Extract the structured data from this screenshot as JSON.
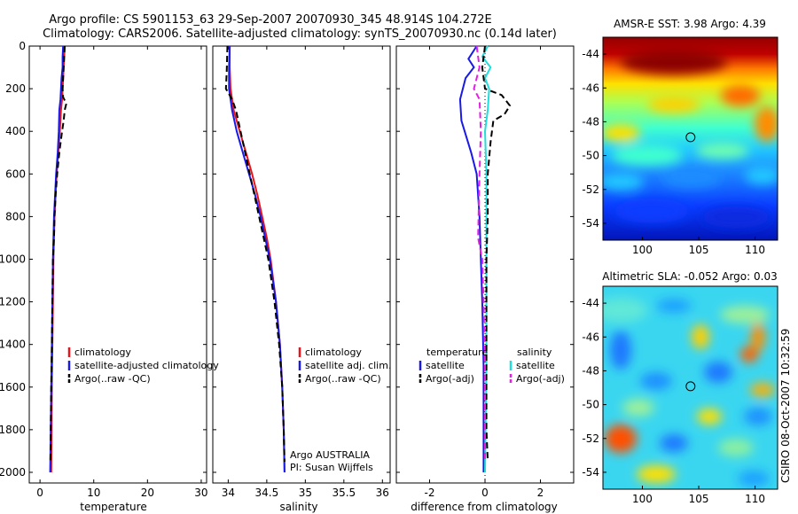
{
  "title_line1": "Argo profile: CS 5901153_63 29-Sep-2007 20070930_345 48.914S 104.272E",
  "title_line2": "Climatology: CARS2006. Satellite-adjusted climatology: synTS_20070930.nc (0.14d later)",
  "stamp": "CSIRO 08-Oct-2007 10:32:59",
  "colors": {
    "clim": "#e8141c",
    "sat_t": "#1a1ae6",
    "sat_s": "#22dddd",
    "argo": "#000000",
    "argo_s": "#e61ee6"
  },
  "chart_data": [
    {
      "type": "line",
      "xlabel": "temperature",
      "xlim": [
        -2,
        31
      ],
      "xticks": [
        0,
        10,
        20,
        30
      ],
      "ylim": [
        2050,
        0
      ],
      "yticks": [
        0,
        200,
        400,
        600,
        800,
        1000,
        1200,
        1400,
        1600,
        1800,
        2000
      ],
      "legend": [
        "climatology",
        "satellite-adjusted climatology",
        "Argo(..raw -QC)"
      ],
      "series": [
        {
          "name": "climatology",
          "color": "#e8141c",
          "dash": "",
          "points": [
            [
              4.6,
              0
            ],
            [
              4.5,
              50
            ],
            [
              4.4,
              100
            ],
            [
              4.3,
              150
            ],
            [
              4.2,
              200
            ],
            [
              4.1,
              250
            ],
            [
              3.9,
              300
            ],
            [
              3.7,
              400
            ],
            [
              3.4,
              500
            ],
            [
              3.1,
              600
            ],
            [
              2.9,
              700
            ],
            [
              2.7,
              800
            ],
            [
              2.6,
              900
            ],
            [
              2.5,
              1000
            ],
            [
              2.4,
              1200
            ],
            [
              2.3,
              1400
            ],
            [
              2.2,
              1600
            ],
            [
              2.15,
              1800
            ],
            [
              2.1,
              2000
            ]
          ]
        },
        {
          "name": "satellite-adjusted climatology",
          "color": "#1a1ae6",
          "dash": "",
          "points": [
            [
              4.3,
              0
            ],
            [
              4.2,
              50
            ],
            [
              4.2,
              100
            ],
            [
              4.0,
              150
            ],
            [
              3.9,
              200
            ],
            [
              3.8,
              250
            ],
            [
              3.6,
              300
            ],
            [
              3.5,
              400
            ],
            [
              3.3,
              500
            ],
            [
              3.0,
              600
            ],
            [
              2.8,
              700
            ],
            [
              2.6,
              800
            ],
            [
              2.5,
              900
            ],
            [
              2.4,
              1000
            ],
            [
              2.3,
              1200
            ],
            [
              2.2,
              1400
            ],
            [
              2.1,
              1600
            ],
            [
              2.0,
              1800
            ],
            [
              1.9,
              2000
            ]
          ]
        },
        {
          "name": "Argo(..raw -QC)",
          "color": "#000000",
          "dash": "7,4",
          "points": [
            [
              4.6,
              0
            ],
            [
              4.5,
              50
            ],
            [
              4.4,
              100
            ],
            [
              4.3,
              150
            ],
            [
              4.2,
              200
            ],
            [
              4.3,
              240
            ],
            [
              4.9,
              270
            ],
            [
              4.6,
              300
            ],
            [
              4.4,
              350
            ],
            [
              4.1,
              400
            ],
            [
              3.6,
              500
            ],
            [
              3.2,
              600
            ],
            [
              2.9,
              700
            ],
            [
              2.7,
              800
            ],
            [
              2.6,
              900
            ],
            [
              2.4,
              1000
            ],
            [
              2.3,
              1200
            ],
            [
              2.2,
              1400
            ],
            [
              2.1,
              1600
            ],
            [
              2.0,
              1800
            ],
            [
              1.95,
              1950
            ]
          ]
        }
      ]
    },
    {
      "type": "line",
      "xlabel": "salinity",
      "xlim": [
        33.8,
        36.1
      ],
      "xticks": [
        34,
        34.5,
        35,
        35.5,
        36
      ],
      "ylim": [
        2050,
        0
      ],
      "legend": [
        "climatology",
        "satellite adj. clim.",
        "Argo(..raw -QC)"
      ],
      "annotation": [
        "Argo AUSTRALIA",
        "PI: Susan Wijffels"
      ],
      "series": [
        {
          "name": "climatology",
          "color": "#e8141c",
          "dash": "",
          "points": [
            [
              34.02,
              0
            ],
            [
              34.02,
              100
            ],
            [
              34.03,
              200
            ],
            [
              34.07,
              300
            ],
            [
              34.15,
              400
            ],
            [
              34.23,
              500
            ],
            [
              34.31,
              600
            ],
            [
              34.38,
              700
            ],
            [
              34.44,
              800
            ],
            [
              34.5,
              900
            ],
            [
              34.55,
              1000
            ],
            [
              34.62,
              1200
            ],
            [
              34.67,
              1400
            ],
            [
              34.7,
              1600
            ],
            [
              34.72,
              1800
            ],
            [
              34.73,
              2000
            ]
          ]
        },
        {
          "name": "satellite adj. clim.",
          "color": "#1a1ae6",
          "dash": "",
          "points": [
            [
              34.02,
              0
            ],
            [
              34.01,
              100
            ],
            [
              34.01,
              200
            ],
            [
              34.05,
              300
            ],
            [
              34.11,
              400
            ],
            [
              34.19,
              500
            ],
            [
              34.27,
              600
            ],
            [
              34.35,
              700
            ],
            [
              34.42,
              800
            ],
            [
              34.48,
              900
            ],
            [
              34.54,
              1000
            ],
            [
              34.62,
              1200
            ],
            [
              34.67,
              1400
            ],
            [
              34.7,
              1600
            ],
            [
              34.72,
              1800
            ],
            [
              34.73,
              2000
            ]
          ]
        },
        {
          "name": "Argo(..raw -QC)",
          "color": "#000000",
          "dash": "7,4",
          "points": [
            [
              33.99,
              0
            ],
            [
              33.98,
              120
            ],
            [
              33.97,
              200
            ],
            [
              34.05,
              250
            ],
            [
              34.1,
              300
            ],
            [
              34.16,
              400
            ],
            [
              34.22,
              500
            ],
            [
              34.28,
              600
            ],
            [
              34.34,
              700
            ],
            [
              34.4,
              800
            ],
            [
              34.46,
              900
            ],
            [
              34.52,
              1000
            ],
            [
              34.6,
              1200
            ],
            [
              34.66,
              1400
            ],
            [
              34.7,
              1600
            ],
            [
              34.72,
              1800
            ],
            [
              34.73,
              1950
            ]
          ]
        }
      ]
    },
    {
      "type": "line",
      "xlabel": "difference from climatology",
      "xlim": [
        -3.2,
        3.2
      ],
      "xticks": [
        -2,
        0,
        2
      ],
      "ylim": [
        2050,
        0
      ],
      "legend_left_header": "temperature",
      "legend_left": [
        "satellite",
        "Argo(-adj)"
      ],
      "legend_right_header": "salinity",
      "legend_right": [
        "satellite",
        "Argo(-adj)"
      ],
      "series": [
        {
          "name": "temperature satellite",
          "color": "#1a1ae6",
          "dash": "",
          "points": [
            [
              -0.3,
              0
            ],
            [
              -0.6,
              60
            ],
            [
              -0.4,
              100
            ],
            [
              -0.7,
              150
            ],
            [
              -0.8,
              200
            ],
            [
              -0.9,
              250
            ],
            [
              -0.85,
              350
            ],
            [
              -0.5,
              500
            ],
            [
              -0.3,
              600
            ],
            [
              -0.2,
              800
            ],
            [
              -0.15,
              1000
            ],
            [
              -0.1,
              1200
            ],
            [
              -0.05,
              1500
            ],
            [
              -0.05,
              1800
            ],
            [
              -0.05,
              2000
            ]
          ]
        },
        {
          "name": "salinity satellite",
          "color": "#22dddd",
          "dash": "",
          "points": [
            [
              0.1,
              0
            ],
            [
              -0.1,
              50
            ],
            [
              0.2,
              100
            ],
            [
              0.0,
              150
            ],
            [
              0.15,
              200
            ],
            [
              0.1,
              300
            ],
            [
              0.0,
              400
            ],
            [
              0.05,
              600
            ],
            [
              0.05,
              800
            ],
            [
              0.05,
              1000
            ],
            [
              0.05,
              1200
            ],
            [
              0.05,
              1500
            ],
            [
              0.0,
              2000
            ]
          ]
        },
        {
          "name": "temperature Argo(-adj)",
          "color": "#000000",
          "dash": "7,4",
          "points": [
            [
              0.0,
              0
            ],
            [
              -0.1,
              100
            ],
            [
              0.0,
              200
            ],
            [
              0.6,
              230
            ],
            [
              0.9,
              280
            ],
            [
              0.7,
              320
            ],
            [
              0.3,
              350
            ],
            [
              0.2,
              450
            ],
            [
              0.1,
              600
            ],
            [
              0.1,
              800
            ],
            [
              0.05,
              1000
            ],
            [
              0.05,
              1200
            ],
            [
              0.05,
              1500
            ],
            [
              0.05,
              1800
            ],
            [
              0.1,
              1950
            ]
          ]
        },
        {
          "name": "salinity Argo(-adj)",
          "color": "#e61ee6",
          "dash": "7,4",
          "points": [
            [
              -0.3,
              0
            ],
            [
              -0.2,
              100
            ],
            [
              -0.4,
              200
            ],
            [
              -0.2,
              250
            ],
            [
              -0.15,
              400
            ],
            [
              -0.2,
              600
            ],
            [
              -0.25,
              900
            ],
            [
              -0.1,
              1000
            ],
            [
              -0.05,
              1200
            ],
            [
              0.0,
              1500
            ],
            [
              0.0,
              1800
            ],
            [
              0.0,
              1950
            ]
          ]
        }
      ]
    },
    {
      "type": "heatmap",
      "title": "AMSR-E SST: 3.98 Argo: 4.39",
      "xlim": [
        96.5,
        112
      ],
      "ylim": [
        -55,
        -43
      ],
      "xticks": [
        100,
        105,
        110
      ],
      "yticks": [
        -44,
        -46,
        -48,
        -50,
        -52,
        -54
      ],
      "marker": [
        104.272,
        -48.914
      ]
    },
    {
      "type": "heatmap",
      "title": "Altimetric SLA: -0.052 Argo: 0.03",
      "xlim": [
        96.5,
        112
      ],
      "ylim": [
        -55,
        -43
      ],
      "xticks": [
        100,
        105,
        110
      ],
      "yticks": [
        -44,
        -46,
        -48,
        -50,
        -52,
        -54
      ],
      "marker": [
        104.272,
        -48.914
      ]
    }
  ]
}
